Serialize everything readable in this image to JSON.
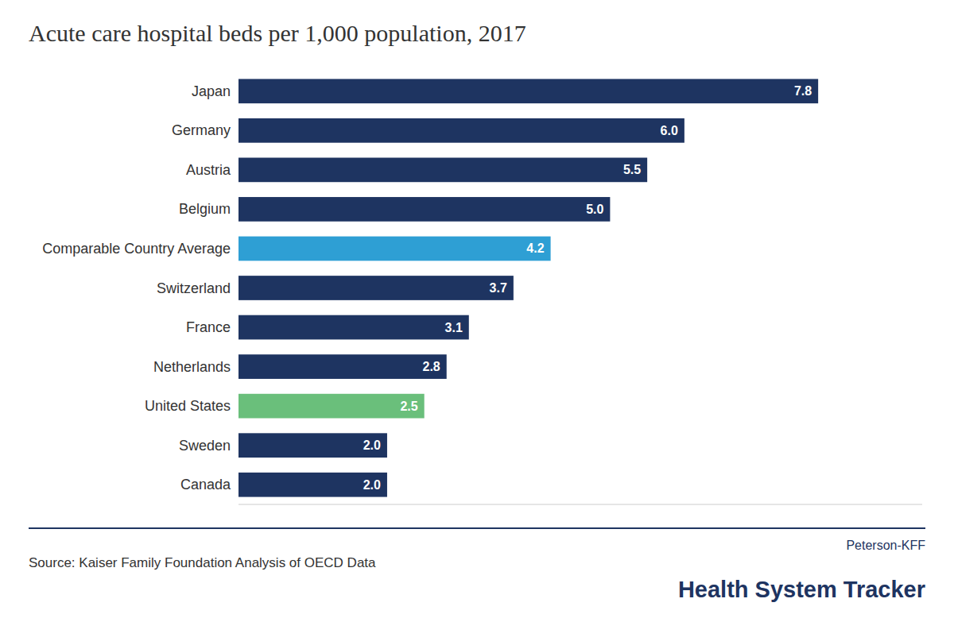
{
  "chart_data": {
    "type": "bar",
    "orientation": "horizontal",
    "title": "Acute care hospital beds per 1,000 population, 2017",
    "categories": [
      "Japan",
      "Germany",
      "Austria",
      "Belgium",
      "Comparable Country Average",
      "Switzerland",
      "France",
      "Netherlands",
      "United States",
      "Sweden",
      "Canada"
    ],
    "values": [
      7.8,
      6.0,
      5.5,
      5.0,
      4.2,
      3.7,
      3.1,
      2.8,
      2.5,
      2.0,
      2.0
    ],
    "value_labels": [
      "7.8",
      "6.0",
      "5.5",
      "5.0",
      "4.2",
      "3.7",
      "3.1",
      "2.8",
      "2.5",
      "2.0",
      "2.0"
    ],
    "colors": [
      "#1e3461",
      "#1e3461",
      "#1e3461",
      "#1e3461",
      "#2e9fd4",
      "#1e3461",
      "#1e3461",
      "#1e3461",
      "#6abf7b",
      "#1e3461",
      "#1e3461"
    ],
    "xlim": [
      0,
      9.2
    ],
    "data_labels": true,
    "tick_labels": "y",
    "grid": false,
    "annotations": [
      "Source: Kaiser Family Foundation Analysis of OECD Data",
      "Peterson-KFF",
      "Health System Tracker"
    ]
  }
}
